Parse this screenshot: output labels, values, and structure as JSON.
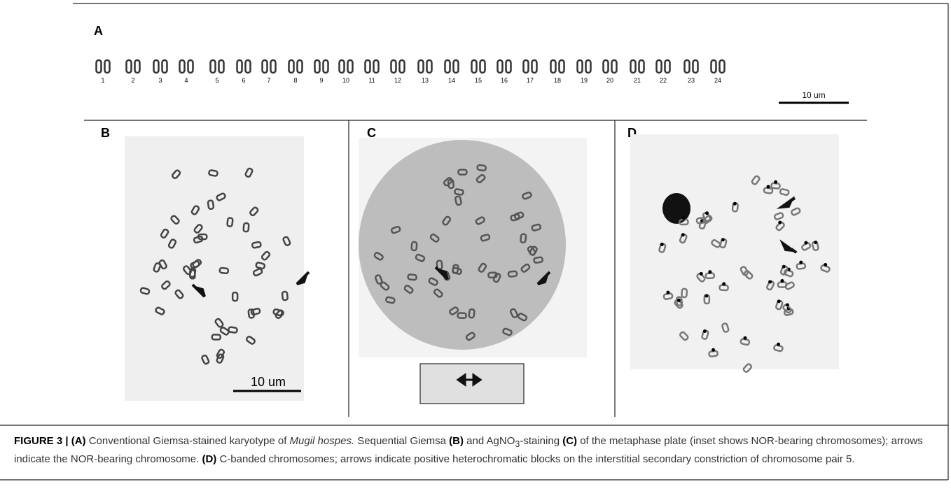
{
  "panels": {
    "A": {
      "label": "A",
      "chromosome_numbers": [
        1,
        2,
        3,
        4,
        5,
        6,
        7,
        8,
        9,
        10,
        11,
        12,
        13,
        14,
        15,
        16,
        17,
        18,
        19,
        20,
        21,
        22,
        23,
        24
      ],
      "scale_bar": "10 um"
    },
    "B": {
      "label": "B",
      "scale_bar": "10 um"
    },
    "C": {
      "label": "C"
    },
    "D": {
      "label": "D"
    }
  },
  "caption": {
    "runs": [
      "FIGURE 3 | (A)",
      " Conventional Giemsa-stained karyotype of ",
      "Mugil hospes.",
      " Sequential Giemsa ",
      "(B)",
      " and AgNO",
      "3",
      "-staining ",
      "(C)",
      " of the metaphase plate (inset shows NOR-bearing chromosomes); arrows indicate the NOR-bearing chromosome. ",
      "(D)",
      " C-banded chromosomes; arrows indicate positive heterochromatic blocks on the interstitial secondary constriction of chromosome pair 5."
    ]
  }
}
